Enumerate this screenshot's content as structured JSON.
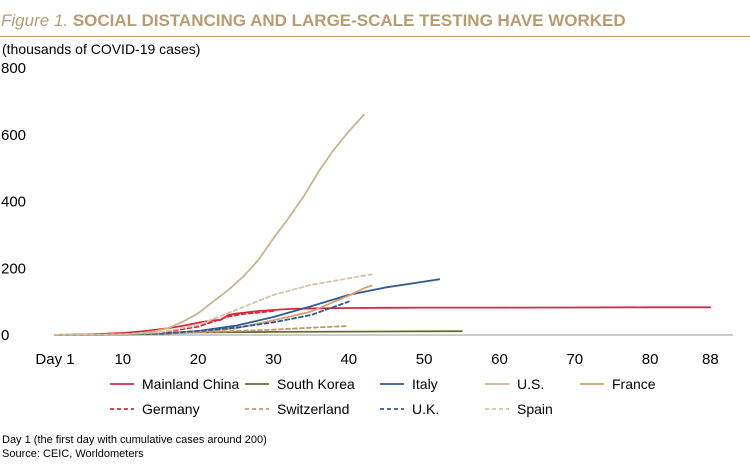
{
  "title": {
    "label": "Figure 1.",
    "text": "SOCIAL DISTANCING AND LARGE-SCALE TESTING HAVE WORKED"
  },
  "units_label": "(thousands of COVID-19 cases)",
  "notes": {
    "day_definition": "Day 1 (the first day with cumulative cases around 200)",
    "source": "Source: CEIC, Worldometers"
  },
  "chart_data": {
    "type": "line",
    "ylabel": "(thousands of COVID-19 cases)",
    "ylim": [
      0,
      800
    ],
    "xlim": [
      1,
      91
    ],
    "y_ticks": [
      0,
      200,
      400,
      600,
      800
    ],
    "x_ticks": [
      {
        "value": 1,
        "label": "Day 1"
      },
      {
        "value": 10,
        "label": "10"
      },
      {
        "value": 20,
        "label": "20"
      },
      {
        "value": 30,
        "label": "30"
      },
      {
        "value": 40,
        "label": "40"
      },
      {
        "value": 50,
        "label": "50"
      },
      {
        "value": 60,
        "label": "60"
      },
      {
        "value": 70,
        "label": "70"
      },
      {
        "value": 80,
        "label": "80"
      },
      {
        "value": 88,
        "label": "88"
      }
    ],
    "grid": false,
    "legend_position": "bottom",
    "series": [
      {
        "name": "Mainland China",
        "color": "#d6293e",
        "dash": "solid",
        "x": [
          1,
          5,
          10,
          13,
          16,
          18,
          20,
          22,
          23,
          24,
          25,
          28,
          32,
          36,
          40,
          45,
          50,
          60,
          70,
          80,
          88
        ],
        "y": [
          0.3,
          1.5,
          6,
          12,
          20,
          28,
          37,
          44,
          45,
          60,
          64,
          72,
          78,
          80,
          81,
          81.5,
          82,
          82,
          82.5,
          83,
          83
        ]
      },
      {
        "name": "South Korea",
        "color": "#6b6b2e",
        "dash": "solid",
        "x": [
          1,
          10,
          14,
          18,
          20,
          25,
          30,
          40,
          50,
          55
        ],
        "y": [
          0.2,
          1,
          3,
          7,
          8,
          8.5,
          9.2,
          10.3,
          11,
          11.5
        ]
      },
      {
        "name": "Italy",
        "color": "#2f5b93",
        "dash": "solid",
        "x": [
          1,
          5,
          10,
          15,
          20,
          25,
          30,
          35,
          40,
          45,
          50,
          52
        ],
        "y": [
          0.2,
          0.5,
          1.5,
          4.5,
          12,
          28,
          54,
          86,
          120,
          143,
          160,
          167
        ]
      },
      {
        "name": "U.S.",
        "color": "#c9b48d",
        "dash": "solid",
        "x": [
          1,
          5,
          10,
          12,
          14,
          16,
          18,
          20,
          22,
          24,
          26,
          28,
          30,
          32,
          34,
          36,
          38,
          40,
          42
        ],
        "y": [
          0.2,
          0.5,
          2,
          4,
          10,
          20,
          40,
          65,
          100,
          135,
          175,
          225,
          290,
          350,
          415,
          490,
          555,
          610,
          660
        ]
      },
      {
        "name": "France",
        "color": "#d99f6a",
        "dash": "solid",
        "x": [
          1,
          5,
          10,
          15,
          20,
          25,
          30,
          35,
          40,
          42,
          43
        ],
        "y": [
          0.2,
          0.5,
          1.5,
          4,
          10,
          20,
          44,
          70,
          118,
          140,
          148
        ]
      },
      {
        "name": "Germany",
        "color": "#d6293e",
        "dash": "dashed",
        "x": [
          1,
          5,
          10,
          15,
          20,
          22,
          24,
          26,
          28,
          30
        ],
        "y": [
          0.2,
          0.5,
          2,
          7,
          25,
          40,
          55,
          63,
          67,
          72
        ]
      },
      {
        "name": "Switzerland",
        "color": "#c19872",
        "dash": "dashed",
        "x": [
          1,
          10,
          15,
          20,
          25,
          30,
          35,
          40
        ],
        "y": [
          0.2,
          1,
          3,
          8,
          12,
          16,
          22,
          27
        ]
      },
      {
        "name": "U.K.",
        "color": "#2f5b93",
        "dash": "dashed",
        "x": [
          1,
          5,
          10,
          15,
          20,
          25,
          30,
          35,
          40
        ],
        "y": [
          0.2,
          0.5,
          1.5,
          4,
          12,
          22,
          38,
          60,
          100
        ]
      },
      {
        "name": "Spain",
        "color": "#d7c4a4",
        "dash": "dashed",
        "x": [
          1,
          5,
          10,
          15,
          20,
          25,
          30,
          35,
          40,
          43
        ],
        "y": [
          0.2,
          0.5,
          2,
          8,
          30,
          75,
          120,
          150,
          170,
          182
        ]
      }
    ]
  }
}
